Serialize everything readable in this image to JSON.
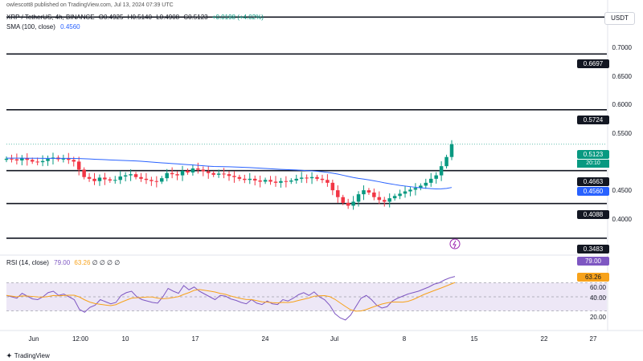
{
  "meta": {
    "author_line": "owlescott8 published on TradingView.com, Jul 13, 2024 07:39 UTC"
  },
  "header": {
    "symbol": "XRP / TetherUS, 4h, BINANCE",
    "open": "O0.4925",
    "high": "H0.5140",
    "low": "L0.4908",
    "close": "C0.5123",
    "change": "+0.0198 (+4.02%)",
    "sma_label": "SMA (100, close)",
    "sma_value": "0.4560"
  },
  "currency": "USDT",
  "price_axis": [
    "0.7000",
    "0.6500",
    "0.6000",
    "0.5500",
    "0.4500",
    "0.4000"
  ],
  "level_tags": [
    "0.6697",
    "0.5724",
    "0.4663",
    "0.4088",
    "0.3483"
  ],
  "current_price": "0.5123",
  "countdown": "20:10",
  "sma_tag": "0.4560",
  "rsi": {
    "label": "RSI (14, close)",
    "value": "79.00",
    "ma_value": "63.26",
    "extra": "∅ ∅ ∅ ∅",
    "axis": [
      "60.00",
      "40.00",
      "20.00"
    ]
  },
  "time_axis": [
    "Jun",
    "12:00",
    "10",
    "17",
    "24",
    "Jul",
    "8",
    "15",
    "22",
    "27"
  ],
  "brand": "TradingView",
  "colors": {
    "up": "#089981",
    "down": "#f23645",
    "sma": "#2962ff",
    "rsi_line": "#7e57c2",
    "rsi_ma": "#f7a21b",
    "rsi_band": "#ede7f6"
  },
  "chart_data": {
    "type": "candlestick",
    "symbol": "XRP / TetherUS",
    "interval": "4h",
    "sma_period": 100,
    "horizontal_levels": [
      0.7342,
      0.6697,
      0.5724,
      0.4663,
      0.4088,
      0.3483
    ],
    "price_range": [
      0.33,
      0.75
    ],
    "closes": [
      0.487,
      0.486,
      0.484,
      0.488,
      0.485,
      0.482,
      0.481,
      0.483,
      0.487,
      0.489,
      0.486,
      0.487,
      0.485,
      0.482,
      0.468,
      0.455,
      0.452,
      0.448,
      0.454,
      0.451,
      0.449,
      0.45,
      0.456,
      0.458,
      0.46,
      0.455,
      0.452,
      0.45,
      0.448,
      0.447,
      0.453,
      0.462,
      0.46,
      0.458,
      0.466,
      0.463,
      0.47,
      0.468,
      0.465,
      0.462,
      0.459,
      0.461,
      0.46,
      0.457,
      0.455,
      0.452,
      0.45,
      0.452,
      0.449,
      0.447,
      0.45,
      0.447,
      0.445,
      0.448,
      0.447,
      0.449,
      0.452,
      0.454,
      0.453,
      0.455,
      0.452,
      0.45,
      0.445,
      0.432,
      0.42,
      0.41,
      0.405,
      0.412,
      0.425,
      0.432,
      0.428,
      0.42,
      0.415,
      0.412,
      0.418,
      0.422,
      0.426,
      0.43,
      0.433,
      0.436,
      0.44,
      0.445,
      0.452,
      0.458,
      0.474,
      0.49,
      0.5123
    ],
    "rsi_values": [
      52,
      50,
      48,
      55,
      51,
      47,
      46,
      50,
      56,
      58,
      52,
      54,
      50,
      46,
      32,
      28,
      35,
      38,
      46,
      43,
      40,
      42,
      52,
      56,
      58,
      50,
      46,
      44,
      42,
      41,
      50,
      62,
      58,
      55,
      66,
      60,
      64,
      58,
      54,
      50,
      46,
      52,
      51,
      47,
      45,
      42,
      40,
      46,
      41,
      39,
      44,
      40,
      39,
      46,
      44,
      48,
      53,
      56,
      52,
      57,
      50,
      46,
      38,
      26,
      20,
      17,
      24,
      36,
      48,
      52,
      46,
      38,
      34,
      36,
      44,
      48,
      51,
      54,
      56,
      58,
      61,
      64,
      68,
      70,
      74,
      77,
      79
    ]
  }
}
